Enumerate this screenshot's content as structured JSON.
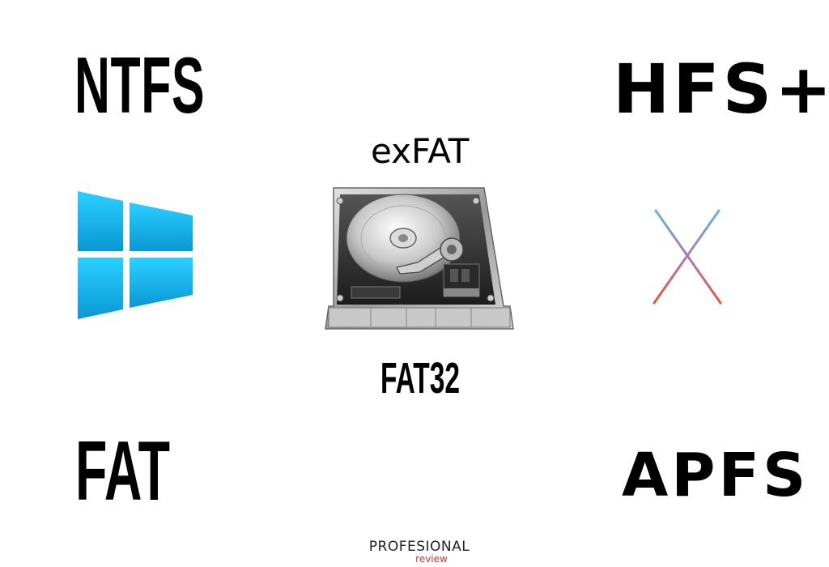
{
  "labels": {
    "ntfs": "NTFS",
    "hfs_plus": "HFS+",
    "exfat": "exFAT",
    "fat32": "FAT32",
    "fat": "FAT",
    "apfs": "APFS"
  },
  "brand": {
    "main": "PROFESIONAL",
    "sub": "review"
  },
  "icons": {
    "windows": "windows-logo-icon",
    "osx": "mac-os-x-logo-icon",
    "drive": "hard-drive-icon"
  },
  "colors": {
    "windows_top": "#2bd0ff",
    "windows_bottom": "#0a97d6",
    "osx_top": "#5db8e8",
    "osx_bottom": "#e8583c",
    "brand_accent": "#c0392b"
  }
}
